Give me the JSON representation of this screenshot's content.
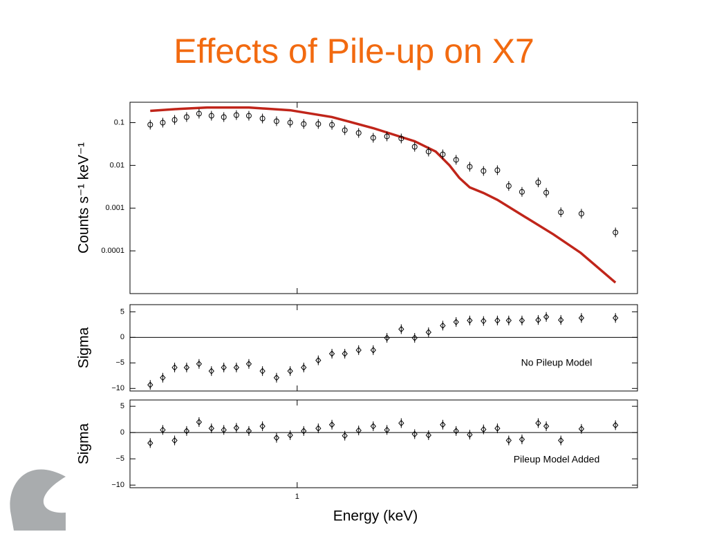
{
  "chart_data": [
    {
      "type": "scatter",
      "title": "Effects of Pile-up on X7",
      "ylabel": "Counts s⁻¹ keV⁻¹",
      "color": "#000000",
      "marker": "circle",
      "log_x": true,
      "log_y": true,
      "xlim": [
        0.47,
        4.65
      ],
      "ylim": [
        1e-05,
        0.3
      ],
      "yticks": [
        0.1,
        0.01,
        0.001,
        0.0001
      ],
      "x": [
        0.515,
        0.545,
        0.575,
        0.607,
        0.642,
        0.679,
        0.718,
        0.76,
        0.804,
        0.855,
        0.911,
        0.969,
        1.03,
        1.1,
        1.17,
        1.24,
        1.32,
        1.41,
        1.5,
        1.6,
        1.7,
        1.81,
        1.93,
        2.05,
        2.18,
        2.32,
        2.47,
        2.6,
        2.76,
        2.97,
        3.08,
        3.29,
        3.61,
        4.21
      ],
      "values": [
        0.0895,
        0.1,
        0.116,
        0.135,
        0.162,
        0.145,
        0.135,
        0.15,
        0.145,
        0.125,
        0.108,
        0.1,
        0.093,
        0.093,
        0.089,
        0.0665,
        0.0573,
        0.0442,
        0.0476,
        0.0426,
        0.0272,
        0.021,
        0.0181,
        0.0135,
        0.0093,
        0.0074,
        0.0077,
        0.0033,
        0.0024,
        0.004,
        0.0023,
        0.0008,
        0.00074,
        0.00027
      ],
      "model_color": "#c0251a",
      "model_x": [
        0.515,
        0.588,
        0.666,
        0.804,
        0.969,
        1.17,
        1.41,
        1.7,
        1.87,
        1.99,
        2.08,
        2.18,
        2.32,
        2.47,
        2.8,
        3.18,
        3.6,
        4.21
      ],
      "model_values": [
        0.188,
        0.21,
        0.226,
        0.226,
        0.195,
        0.135,
        0.0743,
        0.0367,
        0.021,
        0.01,
        0.0051,
        0.00305,
        0.00226,
        0.00156,
        0.00062,
        0.000244,
        8.95e-05,
        1.81e-05
      ]
    },
    {
      "type": "scatter",
      "ylabel": "Sigma",
      "annotation": "No Pileup Model",
      "color": "#000000",
      "marker": "diamond",
      "log_x": true,
      "xlim": [
        0.47,
        4.65
      ],
      "ylim": [
        -10.5,
        6.4
      ],
      "yticks": [
        5,
        0,
        {
          "value": -5,
          "label": "−5"
        },
        {
          "value": -10,
          "label": "−10"
        }
      ],
      "x": [
        0.515,
        0.545,
        0.575,
        0.607,
        0.642,
        0.679,
        0.718,
        0.76,
        0.804,
        0.855,
        0.911,
        0.969,
        1.03,
        1.1,
        1.17,
        1.24,
        1.32,
        1.41,
        1.5,
        1.6,
        1.7,
        1.81,
        1.93,
        2.05,
        2.18,
        2.32,
        2.47,
        2.6,
        2.76,
        2.97,
        3.08,
        3.29,
        3.61,
        4.21
      ],
      "values": [
        -9.3,
        -7.9,
        -5.9,
        -5.9,
        -5.2,
        -6.6,
        -5.9,
        -5.9,
        -5.2,
        -6.6,
        -7.9,
        -6.6,
        -5.9,
        -4.5,
        -3.2,
        -3.2,
        -2.5,
        -2.5,
        -0.1,
        1.6,
        -0.1,
        1.0,
        2.3,
        3.0,
        3.3,
        3.2,
        3.3,
        3.3,
        3.3,
        3.4,
        4.0,
        3.4,
        3.8,
        3.8
      ]
    },
    {
      "type": "scatter",
      "ylabel": "Sigma",
      "annotation": "Pileup Model Added",
      "xlabel": "Energy (keV)",
      "color": "#000000",
      "marker": "diamond",
      "log_x": true,
      "xlim": [
        0.47,
        4.65
      ],
      "xticks": [
        1
      ],
      "ylim": [
        -10.5,
        6.2
      ],
      "yticks": [
        5,
        0,
        {
          "value": -5,
          "label": "−5"
        },
        {
          "value": -10,
          "label": "−10"
        }
      ],
      "x": [
        0.515,
        0.545,
        0.575,
        0.607,
        0.642,
        0.679,
        0.718,
        0.76,
        0.804,
        0.855,
        0.911,
        0.969,
        1.03,
        1.1,
        1.17,
        1.24,
        1.32,
        1.41,
        1.5,
        1.6,
        1.7,
        1.81,
        1.93,
        2.05,
        2.18,
        2.32,
        2.47,
        2.6,
        2.76,
        2.97,
        3.08,
        3.29,
        3.61,
        4.21
      ],
      "values": [
        -2.0,
        0.5,
        -1.5,
        0.3,
        2.0,
        0.8,
        0.5,
        0.9,
        0.3,
        1.2,
        -1.0,
        -0.5,
        0.3,
        0.8,
        1.5,
        -0.6,
        0.4,
        1.2,
        0.5,
        1.8,
        -0.3,
        -0.5,
        1.5,
        0.3,
        -0.4,
        0.6,
        0.8,
        -1.5,
        -1.3,
        1.8,
        1.2,
        -1.5,
        0.7,
        1.4
      ]
    }
  ]
}
